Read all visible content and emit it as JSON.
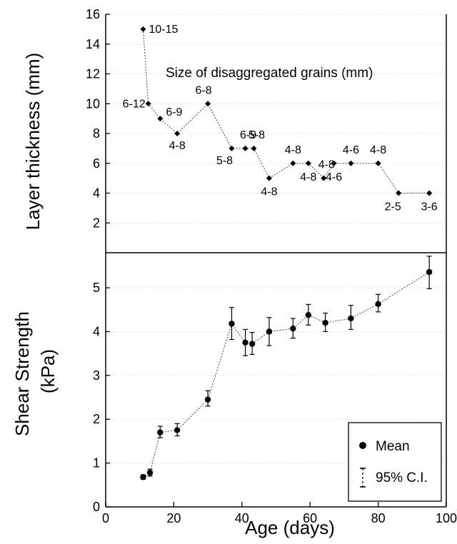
{
  "chart_data": [
    {
      "type": "line",
      "ylabel": "Layer thickness (mm)",
      "xlim": [
        0,
        100
      ],
      "ylim": [
        0,
        16
      ],
      "yticks": [
        2,
        4,
        6,
        8,
        10,
        12,
        14,
        16
      ],
      "annotation": "Size of disaggregated grains (mm)",
      "points": [
        {
          "x": 11,
          "y": 15,
          "label": "10-15"
        },
        {
          "x": 12.5,
          "y": 10,
          "label": "6-12"
        },
        {
          "x": 16,
          "y": 9,
          "label": "6-9"
        },
        {
          "x": 21,
          "y": 8,
          "label": "4-8"
        },
        {
          "x": 30,
          "y": 10,
          "label": "6-8"
        },
        {
          "x": 37,
          "y": 7,
          "label": "5-8"
        },
        {
          "x": 41,
          "y": 7,
          "label": "6-9"
        },
        {
          "x": 43.5,
          "y": 7,
          "label": "5-8"
        },
        {
          "x": 48,
          "y": 5,
          "label": "4-8"
        },
        {
          "x": 55,
          "y": 6,
          "label": "4-8"
        },
        {
          "x": 59.5,
          "y": 6,
          "label": "4-8"
        },
        {
          "x": 64,
          "y": 5,
          "label": "4-8"
        },
        {
          "x": 67,
          "y": 6,
          "label": "4-6"
        },
        {
          "x": 72,
          "y": 6,
          "label": "4-6"
        },
        {
          "x": 80,
          "y": 6,
          "label": "4-8"
        },
        {
          "x": 86,
          "y": 4,
          "label": "2-5"
        },
        {
          "x": 95,
          "y": 4,
          "label": "3-6"
        }
      ]
    },
    {
      "type": "line",
      "xlabel": "Age (days)",
      "ylabel": "Shear Strength (kPa)",
      "xlim": [
        0,
        100
      ],
      "ylim": [
        0,
        5.8
      ],
      "xticks": [
        0,
        20,
        40,
        60,
        80,
        100
      ],
      "yticks": [
        0,
        1,
        2,
        3,
        4,
        5
      ],
      "legend": {
        "position": "bottom-right",
        "entries": [
          "Mean",
          "95% C.I."
        ]
      },
      "points": [
        {
          "x": 11,
          "y": 0.68,
          "lo": 0.63,
          "hi": 0.73
        },
        {
          "x": 13,
          "y": 0.78,
          "lo": 0.7,
          "hi": 0.86
        },
        {
          "x": 16,
          "y": 1.7,
          "lo": 1.58,
          "hi": 1.84
        },
        {
          "x": 21,
          "y": 1.75,
          "lo": 1.62,
          "hi": 1.9
        },
        {
          "x": 30,
          "y": 2.45,
          "lo": 2.3,
          "hi": 2.65
        },
        {
          "x": 37,
          "y": 4.18,
          "lo": 3.82,
          "hi": 4.55
        },
        {
          "x": 41,
          "y": 3.75,
          "lo": 3.45,
          "hi": 4.05
        },
        {
          "x": 43,
          "y": 3.72,
          "lo": 3.48,
          "hi": 3.98
        },
        {
          "x": 48,
          "y": 4.0,
          "lo": 3.68,
          "hi": 4.32
        },
        {
          "x": 55,
          "y": 4.07,
          "lo": 3.85,
          "hi": 4.3
        },
        {
          "x": 59.5,
          "y": 4.38,
          "lo": 4.15,
          "hi": 4.62
        },
        {
          "x": 64.5,
          "y": 4.2,
          "lo": 4.0,
          "hi": 4.42
        },
        {
          "x": 72,
          "y": 4.3,
          "lo": 4.05,
          "hi": 4.6
        },
        {
          "x": 80,
          "y": 4.63,
          "lo": 4.45,
          "hi": 4.85
        },
        {
          "x": 95,
          "y": 5.36,
          "lo": 4.98,
          "hi": 5.72
        }
      ]
    }
  ]
}
